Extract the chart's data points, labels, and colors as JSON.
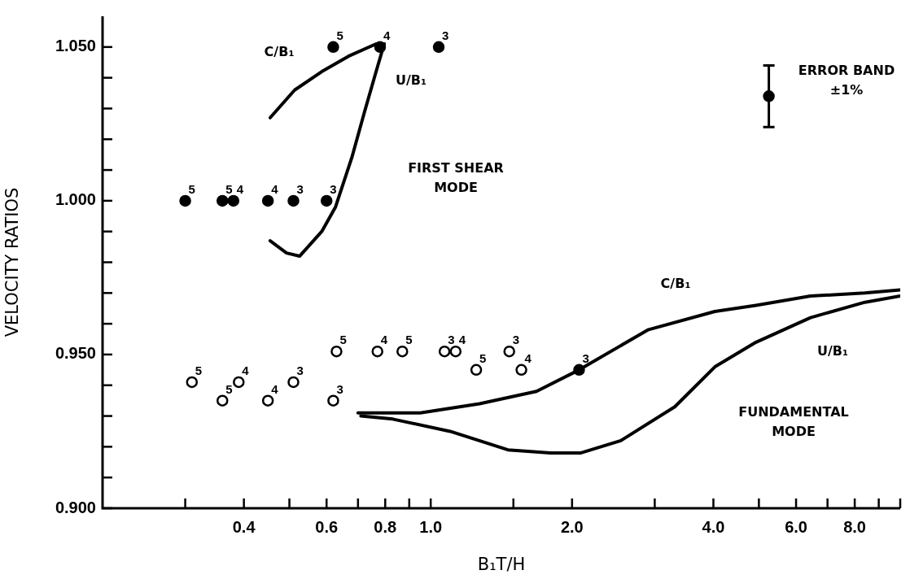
{
  "chart_data": {
    "type": "scatter",
    "xlabel": "B₁T/H",
    "ylabel": "VELOCITY RATIOS",
    "log": "x",
    "grid": false,
    "legend": false,
    "line_style": "solid",
    "xlim": [
      0.2,
      10
    ],
    "ylim": [
      0.9,
      1.06
    ],
    "xticks": [
      {
        "value": 0.3,
        "label": null
      },
      {
        "value": 0.4,
        "label": "0.4"
      },
      {
        "value": 0.5,
        "label": null
      },
      {
        "value": 0.6,
        "label": "0.6"
      },
      {
        "value": 0.7,
        "label": null
      },
      {
        "value": 0.8,
        "label": "0.8"
      },
      {
        "value": 0.9,
        "label": null
      },
      {
        "value": 1,
        "label": "1.0"
      },
      {
        "value": 1.5,
        "label": null
      },
      {
        "value": 2,
        "label": "2.0"
      },
      {
        "value": 3,
        "label": null
      },
      {
        "value": 4,
        "label": "4.0"
      },
      {
        "value": 5,
        "label": null
      },
      {
        "value": 6,
        "label": "6.0"
      },
      {
        "value": 7,
        "label": null
      },
      {
        "value": 8,
        "label": "8.0"
      },
      {
        "value": 9,
        "label": null
      },
      {
        "value": 10,
        "label": null
      }
    ],
    "yticks": [
      {
        "value": 0.9,
        "label": "0.900"
      },
      {
        "value": 0.91,
        "label": null
      },
      {
        "value": 0.92,
        "label": null
      },
      {
        "value": 0.93,
        "label": null
      },
      {
        "value": 0.94,
        "label": null
      },
      {
        "value": 0.95,
        "label": "0.950"
      },
      {
        "value": 0.96,
        "label": null
      },
      {
        "value": 0.97,
        "label": null
      },
      {
        "value": 0.98,
        "label": null
      },
      {
        "value": 0.99,
        "label": null
      },
      {
        "value": 1.0,
        "label": "1.000"
      },
      {
        "value": 1.01,
        "label": null
      },
      {
        "value": 1.02,
        "label": null
      },
      {
        "value": 1.03,
        "label": null
      },
      {
        "value": 1.04,
        "label": null
      },
      {
        "value": 1.05,
        "label": "1.050"
      }
    ],
    "series": [
      {
        "type": "line",
        "marker": "none",
        "color": "#000000",
        "x": [
          0.455,
          0.513,
          0.586,
          0.668,
          0.765,
          0.796
        ],
        "values": [
          1.027,
          1.036,
          1.042,
          1.047,
          1.051,
          1.051
        ]
      },
      {
        "type": "line",
        "marker": "none",
        "color": "#000000",
        "x": [
          0.455,
          0.493,
          0.526,
          0.586,
          0.627,
          0.679,
          0.723,
          0.765,
          0.796
        ],
        "values": [
          0.987,
          0.983,
          0.982,
          0.99,
          0.998,
          1.014,
          1.029,
          1.042,
          1.051
        ]
      },
      {
        "type": "line",
        "marker": "none",
        "color": "#000000",
        "x": [
          0.7,
          0.95,
          1.27,
          1.68,
          2.07,
          2.9,
          4.03,
          4.93,
          6.44,
          8.41,
          10
        ],
        "values": [
          0.931,
          0.931,
          0.934,
          0.938,
          0.945,
          0.958,
          0.964,
          0.966,
          0.969,
          0.97,
          0.971
        ]
      },
      {
        "type": "line",
        "marker": "none",
        "color": "#000000",
        "x": [
          0.71,
          0.83,
          1.1,
          1.46,
          1.8,
          2.09,
          2.54,
          3.31,
          4.03,
          4.93,
          6.44,
          8.41,
          10
        ],
        "values": [
          0.93,
          0.929,
          0.925,
          0.919,
          0.918,
          0.918,
          0.922,
          0.933,
          0.946,
          0.954,
          0.962,
          0.967,
          0.969
        ]
      },
      {
        "marker": "circle",
        "color": "#000000",
        "x": [
          0.3,
          0.36,
          0.38,
          0.45,
          0.51,
          0.6,
          0.62,
          0.78,
          1.04,
          2.07
        ],
        "values": [
          1.0,
          1.0,
          1.0,
          1.0,
          1.0,
          1.0,
          1.05,
          1.05,
          1.05,
          0.945
        ]
      },
      {
        "marker": "circle-open",
        "color": "#000000",
        "x": [
          0.31,
          0.36,
          0.39,
          0.45,
          0.51,
          0.62,
          0.63,
          0.77,
          0.87,
          1.07,
          1.13,
          1.25,
          1.47,
          1.56
        ],
        "values": [
          0.941,
          0.935,
          0.941,
          0.935,
          0.941,
          0.935,
          0.951,
          0.951,
          0.951,
          0.951,
          0.951,
          0.945,
          0.951,
          0.945
        ]
      },
      {
        "marker": "circle",
        "color": "#000000",
        "x": [
          5.25
        ],
        "values": [
          1.034
        ],
        "errors": [
          0.01
        ]
      }
    ],
    "annotations": [
      "C/B₁",
      "U/B₁",
      "FIRST SHEAR MODE",
      "C/B₁",
      "U/B₁",
      "FUNDAMENTAL MODE",
      "ERROR BAND ±1%",
      {
        "text": "5",
        "x": 0.3,
        "y": 1.0
      },
      {
        "text": "5",
        "x": 0.36,
        "y": 1.0
      },
      {
        "text": "4",
        "x": 0.38,
        "y": 1.0
      },
      {
        "text": "4",
        "x": 0.45,
        "y": 1.0
      },
      {
        "text": "3",
        "x": 0.51,
        "y": 1.0
      },
      {
        "text": "3",
        "x": 0.6,
        "y": 1.0
      },
      {
        "text": "5",
        "x": 0.62,
        "y": 1.05
      },
      {
        "text": "4",
        "x": 0.78,
        "y": 1.05
      },
      {
        "text": "3",
        "x": 1.04,
        "y": 1.05
      },
      {
        "text": "3",
        "x": 2.07,
        "y": 0.945
      },
      {
        "text": "5",
        "x": 0.31,
        "y": 0.941
      },
      {
        "text": "5",
        "x": 0.36,
        "y": 0.935
      },
      {
        "text": "4",
        "x": 0.39,
        "y": 0.941
      },
      {
        "text": "4",
        "x": 0.45,
        "y": 0.935
      },
      {
        "text": "3",
        "x": 0.51,
        "y": 0.941
      },
      {
        "text": "3",
        "x": 0.62,
        "y": 0.935
      },
      {
        "text": "5",
        "x": 0.63,
        "y": 0.951
      },
      {
        "text": "4",
        "x": 0.77,
        "y": 0.951
      },
      {
        "text": "5",
        "x": 0.87,
        "y": 0.951
      },
      {
        "text": "3",
        "x": 1.07,
        "y": 0.951
      },
      {
        "text": "4",
        "x": 1.13,
        "y": 0.951
      },
      {
        "text": "5",
        "x": 1.25,
        "y": 0.945
      },
      {
        "text": "3",
        "x": 1.47,
        "y": 0.951
      },
      {
        "text": "4",
        "x": 1.56,
        "y": 0.945
      }
    ]
  }
}
